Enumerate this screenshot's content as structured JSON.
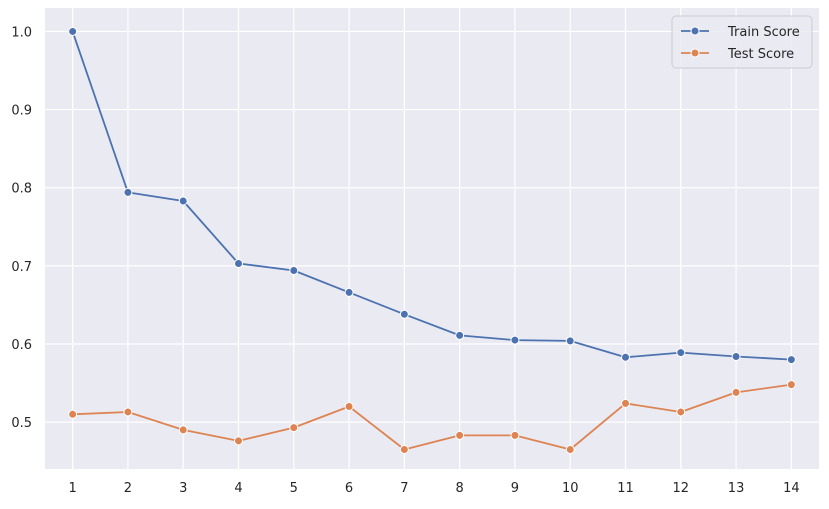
{
  "chart_data": {
    "type": "line",
    "x": [
      1,
      2,
      3,
      4,
      5,
      6,
      7,
      8,
      9,
      10,
      11,
      12,
      13,
      14
    ],
    "xticks": [
      "1",
      "2",
      "3",
      "4",
      "5",
      "6",
      "7",
      "8",
      "9",
      "10",
      "11",
      "12",
      "13",
      "14"
    ],
    "yticks": [
      "0.5",
      "0.6",
      "0.7",
      "0.8",
      "0.9",
      "1.0"
    ],
    "xlim": [
      0.5,
      14.5
    ],
    "ylim": [
      0.44,
      1.03
    ],
    "grid": true,
    "legend_position": "top-right",
    "series": [
      {
        "name": "Train Score",
        "color": "#4c72b0",
        "marker": "circle",
        "values": [
          1.0,
          0.794,
          0.783,
          0.703,
          0.694,
          0.666,
          0.638,
          0.611,
          0.605,
          0.604,
          0.583,
          0.589,
          0.584,
          0.58
        ]
      },
      {
        "name": "Test Score",
        "color": "#dd8452",
        "marker": "circle",
        "values": [
          0.51,
          0.513,
          0.49,
          0.476,
          0.493,
          0.52,
          0.465,
          0.483,
          0.483,
          0.465,
          0.524,
          0.513,
          0.538,
          0.548
        ]
      }
    ],
    "colors": {
      "plot_background": "#eaeaf2",
      "grid": "#ffffff",
      "text": "#262626"
    }
  }
}
